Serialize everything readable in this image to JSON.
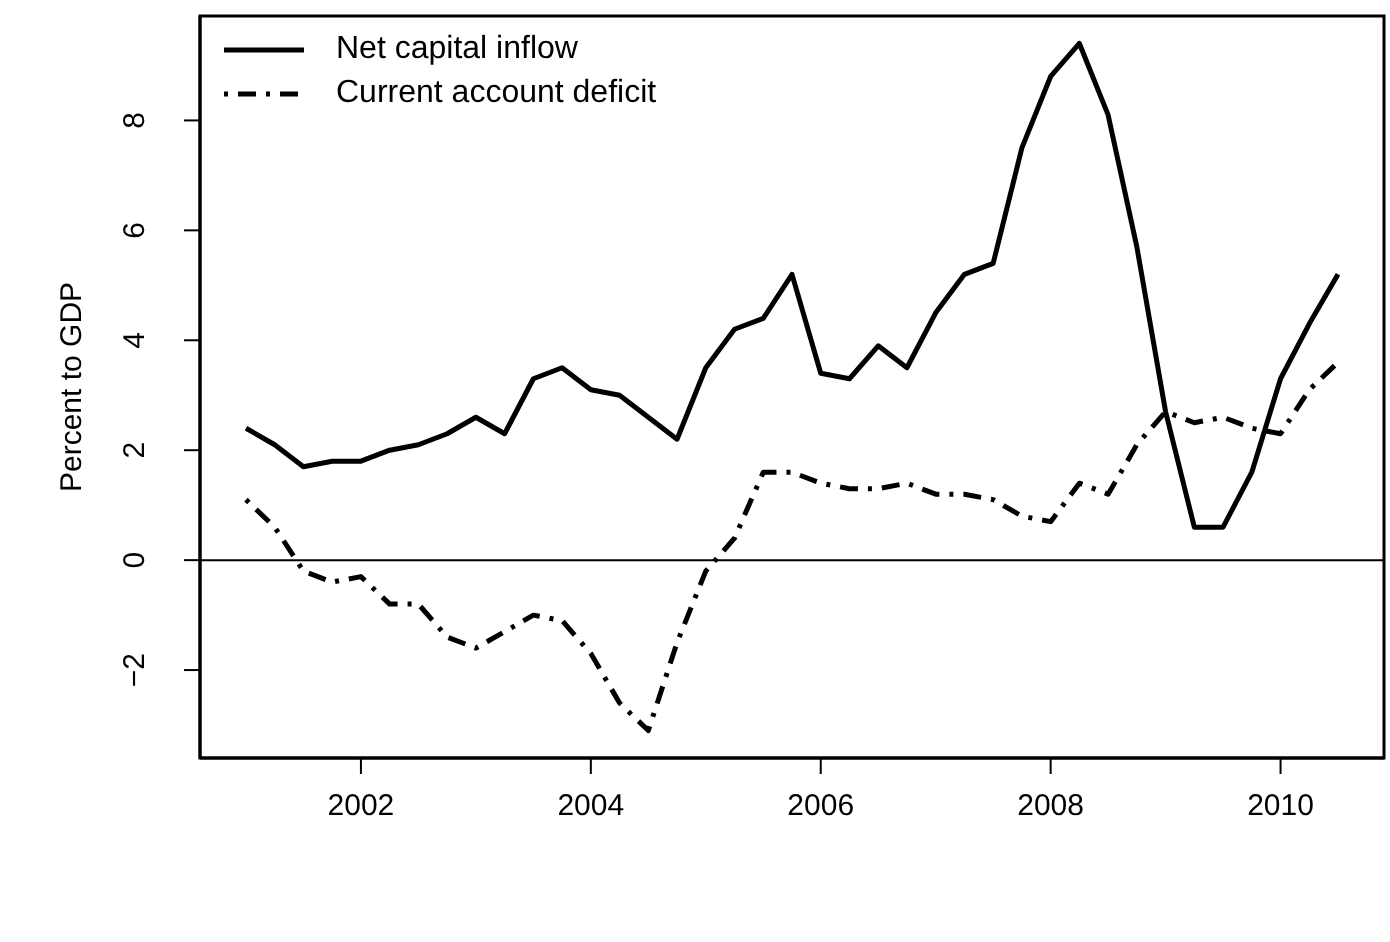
{
  "chart_data": {
    "type": "line",
    "ylabel": "Percent to GDP",
    "x": [
      2001,
      2001.25,
      2001.5,
      2001.75,
      2002,
      2002.25,
      2002.5,
      2002.75,
      2003,
      2003.25,
      2003.5,
      2003.75,
      2004,
      2004.25,
      2004.5,
      2004.75,
      2005,
      2005.25,
      2005.5,
      2005.75,
      2006,
      2006.25,
      2006.5,
      2006.75,
      2007,
      2007.25,
      2007.5,
      2007.75,
      2008,
      2008.25,
      2008.5,
      2008.75,
      2009,
      2009.25,
      2009.5,
      2009.75,
      2010,
      2010.25,
      2010.5
    ],
    "series": [
      {
        "name": "Net capital inflow",
        "color": "#000000",
        "line_style": "solid",
        "values": [
          2.4,
          2.1,
          1.7,
          1.8,
          1.8,
          2.0,
          2.1,
          2.3,
          2.6,
          2.3,
          3.3,
          3.5,
          3.1,
          3.0,
          2.6,
          2.2,
          3.5,
          4.2,
          4.4,
          5.2,
          3.4,
          3.3,
          3.9,
          3.5,
          4.5,
          5.2,
          5.4,
          7.5,
          8.8,
          9.4,
          8.1,
          5.7,
          2.7,
          0.6,
          0.6,
          1.6,
          3.3,
          4.3,
          5.2
        ]
      },
      {
        "name": "Current account deficit",
        "color": "#000000",
        "line_style": "dashed",
        "values": [
          1.1,
          0.6,
          -0.2,
          -0.4,
          -0.3,
          -0.8,
          -0.8,
          -1.4,
          -1.6,
          -1.3,
          -1.0,
          -1.1,
          -1.7,
          -2.6,
          -3.1,
          -1.5,
          -0.2,
          0.4,
          1.6,
          1.6,
          1.4,
          1.3,
          1.3,
          1.4,
          1.2,
          1.2,
          1.1,
          0.8,
          0.7,
          1.4,
          1.2,
          2.1,
          2.7,
          2.5,
          2.6,
          2.4,
          2.3,
          3.1,
          3.6
        ]
      }
    ],
    "xlim": [
      2000.6,
      2010.9
    ],
    "xticks": [
      2002,
      2004,
      2006,
      2008,
      2010
    ],
    "ylim": [
      -3.6,
      9.9
    ],
    "yticks": [
      -2,
      0,
      2,
      4,
      6,
      8
    ],
    "ref_lines": [
      {
        "axis": "y",
        "value": 0,
        "color": "#000000"
      }
    ],
    "grid": false,
    "legend": "top left",
    "marker": "none"
  }
}
